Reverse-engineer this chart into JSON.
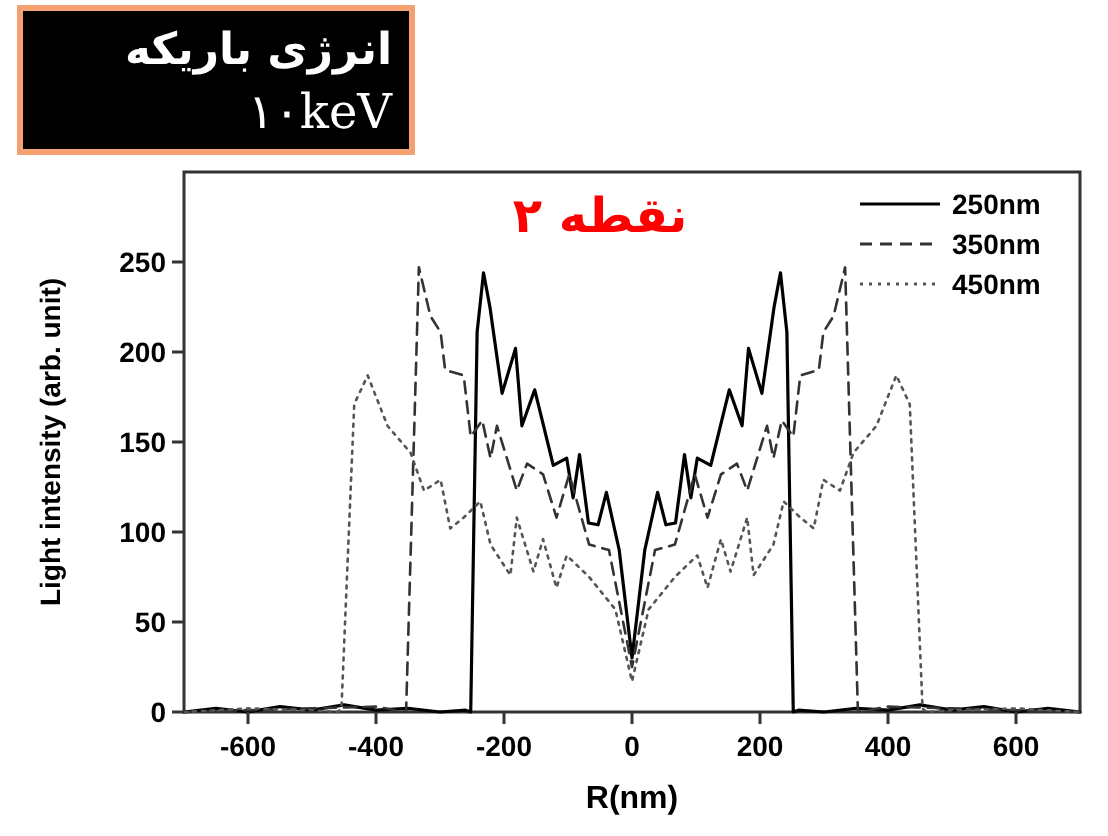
{
  "chart_data": {
    "type": "line",
    "xlabel": "R(nm)",
    "ylabel": "Light intensity (arb. unit)",
    "xlim": [
      -700,
      700
    ],
    "ylim": [
      0,
      300
    ],
    "xticks": [
      -600,
      -400,
      -200,
      0,
      200,
      400,
      600
    ],
    "yticks": [
      0,
      50,
      100,
      150,
      200,
      250
    ],
    "legend": "top right",
    "grid": false,
    "annotations": [
      "انرژی باریکه",
      "۱۰keV",
      "نقطه ۲"
    ],
    "series": [
      {
        "name": "250nm",
        "color": "#000000",
        "line_style": "solid",
        "x": [
          -700,
          -650,
          -600,
          -550,
          -500,
          -450,
          -400,
          -350,
          -300,
          -260,
          -252,
          -242,
          -232,
          -222,
          -203,
          -182,
          -172,
          -152,
          -123,
          -102,
          -92,
          -82,
          -68,
          -53,
          -40,
          -20,
          0,
          20,
          40,
          53,
          68,
          82,
          92,
          102,
          123,
          152,
          172,
          182,
          203,
          222,
          232,
          242,
          252,
          260,
          300,
          350,
          400,
          450,
          500,
          550,
          600,
          650,
          700
        ],
        "values": [
          0,
          2,
          0,
          3,
          1,
          4,
          1,
          2,
          0,
          1,
          0,
          211,
          244,
          225,
          177,
          202,
          159,
          179,
          137,
          141,
          119,
          143,
          105,
          104,
          122,
          90,
          30,
          90,
          122,
          104,
          105,
          143,
          119,
          141,
          137,
          179,
          159,
          202,
          177,
          225,
          244,
          211,
          0,
          1,
          0,
          2,
          1,
          4,
          1,
          3,
          0,
          2,
          0
        ]
      },
      {
        "name": "350nm",
        "color": "#333333",
        "line_style": "dashed",
        "x": [
          -700,
          -600,
          -500,
          -400,
          -370,
          -353,
          -333,
          -315,
          -299,
          -292,
          -263,
          -252,
          -234,
          -221,
          -211,
          -180,
          -164,
          -139,
          -118,
          -98,
          -67,
          -36,
          0,
          36,
          67,
          98,
          118,
          139,
          164,
          180,
          211,
          221,
          234,
          252,
          263,
          292,
          299,
          315,
          333,
          353,
          370,
          400,
          500,
          600,
          700
        ],
        "values": [
          0,
          1,
          2,
          3,
          1,
          0,
          247,
          220,
          211,
          190,
          187,
          153,
          162,
          141,
          159,
          123,
          138,
          132,
          108,
          132,
          93,
          90,
          25,
          90,
          93,
          132,
          108,
          132,
          138,
          123,
          159,
          141,
          162,
          153,
          187,
          190,
          211,
          220,
          247,
          0,
          1,
          3,
          2,
          1,
          0
        ]
      },
      {
        "name": "450nm",
        "color": "#555555",
        "line_style": "dotted",
        "x": [
          -700,
          -600,
          -500,
          -460,
          -454,
          -434,
          -413,
          -382,
          -346,
          -325,
          -299,
          -284,
          -263,
          -237,
          -221,
          -190,
          -180,
          -154,
          -139,
          -118,
          -102,
          -67,
          -26,
          0,
          26,
          67,
          102,
          118,
          139,
          154,
          180,
          190,
          221,
          237,
          263,
          284,
          299,
          325,
          346,
          382,
          413,
          434,
          454,
          460,
          500,
          600,
          700
        ],
        "values": [
          0,
          2,
          1,
          0,
          2,
          171,
          187,
          159,
          144,
          123,
          129,
          102,
          108,
          117,
          93,
          76,
          108,
          78,
          96,
          69,
          87,
          75,
          57,
          17,
          57,
          75,
          87,
          69,
          96,
          78,
          108,
          76,
          93,
          117,
          108,
          102,
          129,
          123,
          144,
          159,
          187,
          171,
          2,
          0,
          1,
          2,
          0
        ]
      }
    ]
  }
}
